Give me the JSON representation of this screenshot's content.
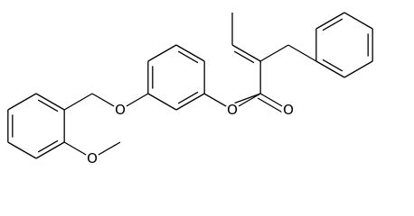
{
  "atom_labels": [
    "O",
    "O",
    "O",
    "O"
  ]
}
